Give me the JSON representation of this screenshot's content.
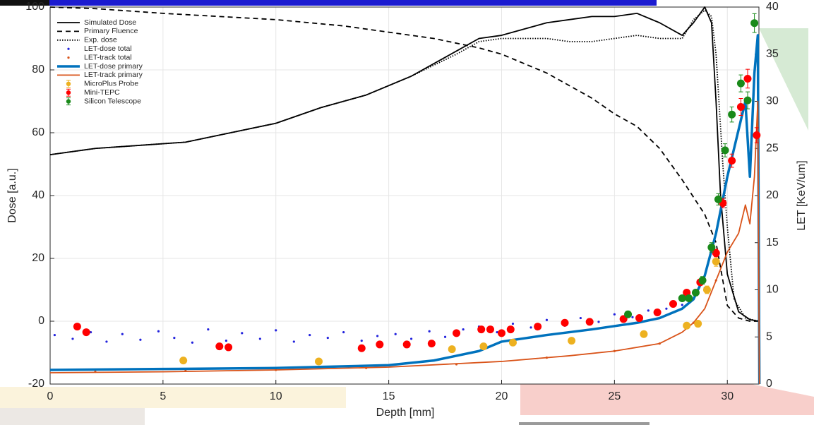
{
  "chart_data": {
    "type": "line",
    "xlabel": "Depth [mm]",
    "ylabel": "Dose [a.u.]",
    "y2label": "LET [KeV/um]",
    "xlim": [
      0,
      31.4
    ],
    "xticks": [
      0,
      5,
      10,
      15,
      20,
      25,
      30
    ],
    "ylim": [
      -20,
      100
    ],
    "yticks": [
      -20,
      0,
      20,
      40,
      60,
      80,
      100
    ],
    "y2lim": [
      0,
      40
    ],
    "y2ticks": [
      0,
      5,
      10,
      15,
      20,
      25,
      30,
      35,
      40
    ],
    "grid": true,
    "legend": "upper left",
    "series": [
      {
        "name": "Simulated Dose",
        "color": "#000000",
        "style": "solid",
        "x": [
          0,
          2,
          4,
          6,
          8,
          10,
          12,
          14,
          16,
          18,
          19,
          20,
          21,
          22,
          23,
          24,
          25,
          26,
          27,
          28,
          28.5,
          29,
          29.3,
          29.5,
          29.7,
          30,
          30.5,
          31,
          31.4
        ],
        "values": [
          53,
          55,
          56,
          57,
          60,
          63,
          68,
          72,
          78,
          86,
          90,
          91,
          93,
          95,
          96,
          97,
          97,
          98,
          95,
          91,
          95,
          100,
          95,
          70,
          40,
          15,
          3,
          0.5,
          0
        ]
      },
      {
        "name": "Primary Fluence",
        "color": "#000000",
        "style": "dashed",
        "x": [
          0,
          2,
          5,
          10,
          13,
          15,
          17,
          19,
          20,
          21,
          22,
          23,
          24,
          25,
          26,
          27,
          28,
          29,
          29.5,
          30,
          30.5,
          31,
          31.4
        ],
        "values": [
          100,
          99.5,
          98,
          96,
          94,
          92,
          90,
          87,
          85,
          82,
          79,
          75,
          71,
          66,
          62,
          55,
          45,
          34,
          25,
          5,
          1,
          0,
          0
        ]
      },
      {
        "name": "Exp. dose",
        "color": "#000000",
        "style": "dotted",
        "x": [
          0,
          2,
          4,
          6,
          8,
          10,
          12,
          14,
          16,
          18,
          19,
          20,
          21,
          22,
          23,
          24,
          25,
          26,
          27,
          28,
          28.5,
          29,
          29.3,
          29.5,
          29.8,
          30,
          30.3,
          30.8,
          31.4
        ],
        "values": [
          53,
          55,
          56,
          57,
          60,
          63,
          68,
          72,
          78,
          85,
          89,
          90,
          90,
          90,
          89,
          89,
          90,
          91,
          90,
          90,
          96,
          99,
          97,
          85,
          50,
          30,
          7,
          1,
          0
        ]
      },
      {
        "name": "LET-dose total",
        "color": "#2222dd",
        "style": "dots",
        "axis": "y2",
        "x": [
          0.2,
          1,
          1.8,
          2.5,
          3.2,
          4,
          4.8,
          5.5,
          6.3,
          7,
          7.8,
          8.5,
          9.3,
          10,
          10.8,
          11.5,
          12.3,
          13,
          13.8,
          14.5,
          15.3,
          16,
          16.8,
          17.5,
          18.3,
          19,
          19.8,
          20.5,
          21.3,
          22,
          22.8,
          23.5,
          24.3,
          25,
          25.8,
          26.5,
          27.3,
          28,
          28.5,
          29
        ],
        "values": [
          5.2,
          4.8,
          5.5,
          4.5,
          5.3,
          4.7,
          5.6,
          4.9,
          4.4,
          5.8,
          4.6,
          5.4,
          4.8,
          5.7,
          4.5,
          5.2,
          4.9,
          5.5,
          4.6,
          5.1,
          5.3,
          4.8,
          5.6,
          5.0,
          5.8,
          6.1,
          5.5,
          6.4,
          6.0,
          6.8,
          6.2,
          7.0,
          6.6,
          7.4,
          7.1,
          7.8,
          8.0,
          8.4,
          9.0,
          10.2
        ]
      },
      {
        "name": "LET-track total",
        "color": "#d95319",
        "style": "dots",
        "axis": "y2",
        "x": [
          2,
          6,
          10,
          14,
          18,
          22,
          25,
          27,
          28.5,
          29.5
        ],
        "values": [
          1.3,
          1.4,
          1.5,
          1.7,
          2.1,
          2.8,
          3.5,
          4.3,
          6.5,
          11
        ]
      },
      {
        "name": "LET-dose primary",
        "color": "#0072bd",
        "style": "thick",
        "axis": "y2",
        "x": [
          0,
          5,
          10,
          15,
          17,
          19,
          20,
          22,
          24,
          26,
          27,
          28,
          28.5,
          29,
          29.5,
          30,
          30.5,
          30.8,
          31,
          31.2,
          31.35,
          31.42
        ],
        "values": [
          1.5,
          1.6,
          1.7,
          2.0,
          2.5,
          3.5,
          4.5,
          5.2,
          5.8,
          6.5,
          7.0,
          8.0,
          9,
          11.5,
          16,
          22,
          27,
          30,
          22,
          33,
          37,
          0
        ]
      },
      {
        "name": "LET-track primary",
        "color": "#d95319",
        "style": "solid",
        "axis": "y2",
        "x": [
          0,
          5,
          10,
          15,
          20,
          23,
          25,
          27,
          28,
          28.5,
          29,
          29.5,
          30,
          30.5,
          30.8,
          31,
          31.2,
          31.35,
          31.42
        ],
        "values": [
          1.2,
          1.3,
          1.5,
          1.8,
          2.4,
          3,
          3.5,
          4.3,
          5.5,
          6.5,
          8,
          11,
          14,
          16,
          19,
          17,
          22,
          30,
          0
        ]
      },
      {
        "name": "MicroPlus Probe",
        "color": "#edb120",
        "style": "errorbar",
        "axis": "y2",
        "x": [
          5.9,
          11.9,
          17.8,
          19.2,
          20.5,
          23.1,
          26.3,
          28.2,
          28.7,
          29.1,
          29.5
        ],
        "values": [
          2.5,
          2.4,
          3.7,
          4.0,
          4.4,
          4.6,
          5.3,
          6.2,
          6.4,
          10,
          13
        ],
        "errors": [
          0.3,
          0.3,
          0.3,
          0.3,
          0.3,
          0.3,
          0.3,
          0.3,
          0.3,
          0.4,
          0.5
        ]
      },
      {
        "name": "Mini-TEPC",
        "color": "#ff0000",
        "style": "errorbar",
        "axis": "y2",
        "x": [
          1.2,
          1.6,
          7.5,
          7.9,
          13.8,
          14.6,
          15.8,
          16.9,
          18.0,
          19.1,
          19.5,
          20.0,
          20.4,
          21.6,
          22.8,
          23.9,
          25.4,
          26.1,
          26.9,
          27.6,
          28.2,
          28.8,
          29.5,
          29.8,
          30.2,
          30.6,
          30.9,
          31.3
        ],
        "values": [
          6.1,
          5.5,
          4.0,
          3.9,
          3.8,
          4.2,
          4.2,
          4.3,
          5.4,
          5.8,
          5.8,
          5.4,
          5.8,
          6.1,
          6.5,
          6.6,
          6.9,
          7.0,
          7.6,
          8.5,
          9.7,
          10.8,
          13.9,
          19.2,
          23.7,
          29.4,
          32.4,
          26.4
        ],
        "errors": [
          0.2,
          0.2,
          0.2,
          0.2,
          0.2,
          0.2,
          0.2,
          0.2,
          0.2,
          0.2,
          0.2,
          0.2,
          0.2,
          0.2,
          0.2,
          0.2,
          0.2,
          0.2,
          0.2,
          0.3,
          0.3,
          0.3,
          0.4,
          0.5,
          0.7,
          0.9,
          1.0,
          0.8
        ]
      },
      {
        "name": "Silicon Telescope",
        "color": "#1a8a1a",
        "style": "errorbar",
        "axis": "y2",
        "x": [
          25.6,
          28.0,
          28.3,
          28.6,
          28.9,
          29.3,
          29.6,
          29.9,
          30.2,
          30.6,
          30.9,
          31.2
        ],
        "values": [
          7.4,
          9.1,
          9.1,
          9.7,
          11.0,
          14.5,
          19.6,
          24.8,
          28.6,
          31.9,
          30.1,
          38.3
        ],
        "errors": [
          0.3,
          0.3,
          0.3,
          0.3,
          0.4,
          0.5,
          0.6,
          0.7,
          0.8,
          0.9,
          0.9,
          1.0
        ]
      }
    ]
  }
}
